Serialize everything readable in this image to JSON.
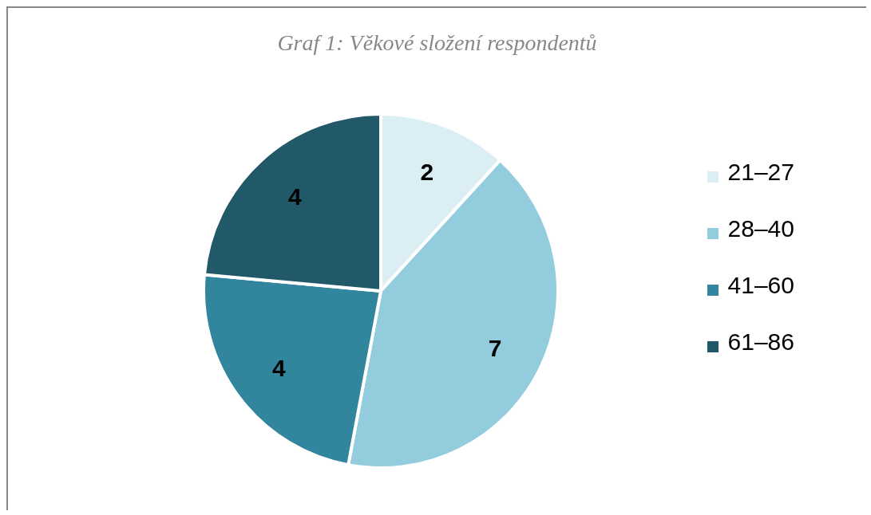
{
  "chart_data": {
    "type": "pie",
    "title": "Graf 1: Věkové složení respondentů",
    "categories": [
      "21–27",
      "28–40",
      "41–60",
      "61–86"
    ],
    "values": [
      2,
      7,
      4,
      4
    ],
    "colors": [
      "#daeef3",
      "#93cddd",
      "#31859c",
      "#215968"
    ],
    "data_labels": true,
    "legend": "right"
  }
}
